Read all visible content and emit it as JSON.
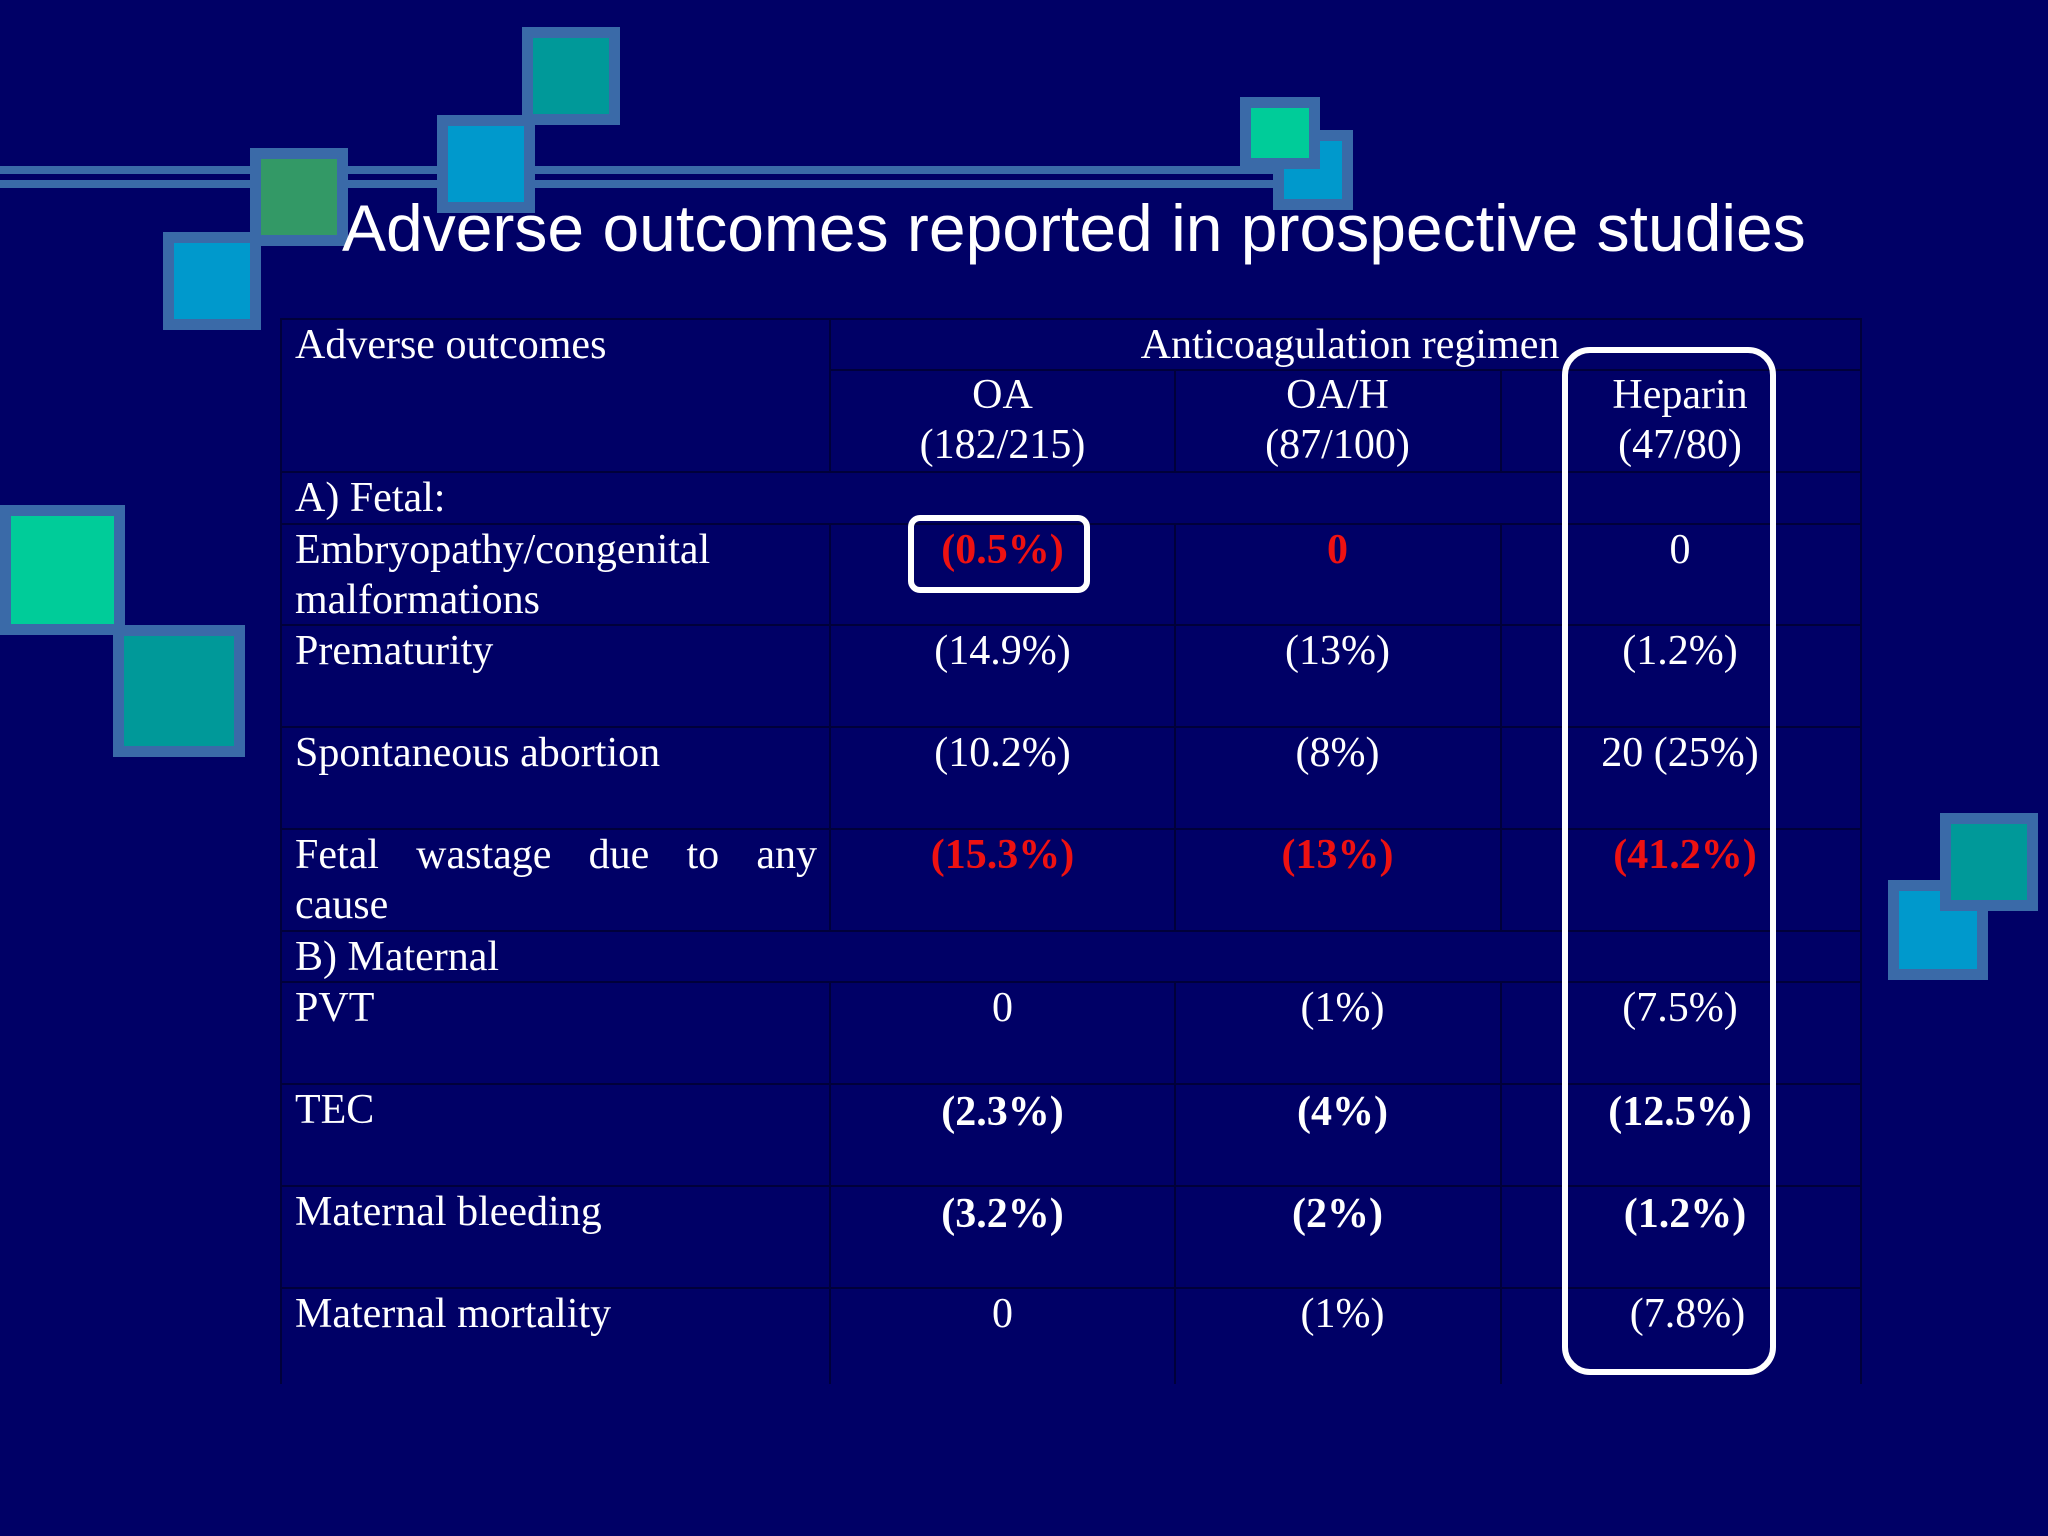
{
  "slide": {
    "title": "Adverse outcomes reported in prospective studies"
  },
  "table": {
    "header_row_label": "Adverse outcomes",
    "group_header": "Anticoagulation regimen",
    "columns": [
      {
        "name": "OA",
        "count": "(182/215)"
      },
      {
        "name": "OA/H",
        "count": "(87/100)"
      },
      {
        "name": "Heparin",
        "count": "(47/80)"
      }
    ],
    "section_a": "A) Fetal:",
    "section_b": "B) Maternal",
    "rows": [
      {
        "label": "Embryopathy/congenital",
        "label2": "malformations",
        "values": [
          "(0.5%)",
          "0",
          "0"
        ]
      },
      {
        "label": "Prematurity",
        "values": [
          "(14.9%)",
          "(13%)",
          "(1.2%)"
        ]
      },
      {
        "label": "Spontaneous abortion",
        "values": [
          "(10.2%)",
          "(8%)",
          "20 (25%)"
        ]
      },
      {
        "label": "Fetal wastage due to any",
        "label2": "cause",
        "values": [
          "(15.3%)",
          "(13%)",
          "(41.2%)"
        ]
      },
      {
        "label": "PVT",
        "values": [
          "0",
          "(1%)",
          "(7.5%)"
        ]
      },
      {
        "label": "TEC",
        "values": [
          "(2.3%)",
          "(4%)",
          "(12.5%)"
        ]
      },
      {
        "label": "Maternal bleeding",
        "values": [
          "(3.2%)",
          "(2%)",
          "(1.2%)"
        ]
      },
      {
        "label": "Maternal mortality",
        "values": [
          "0",
          "(1%)",
          "(7.8%)"
        ]
      }
    ]
  },
  "colors": {
    "background": "#000066",
    "decor_frame": "#3a6aa8",
    "highlight_red": "#ee1111"
  }
}
